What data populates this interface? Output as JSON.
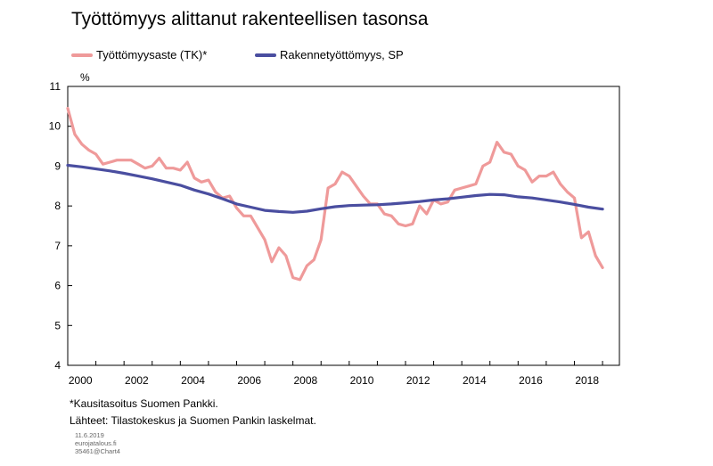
{
  "title": "Työttömyys alittanut rakenteellisen tasonsa",
  "y_unit": "%",
  "notes": [
    "*Kausitasoitus Suomen Pankki.",
    "Lähteet: Tilastokeskus ja Suomen Pankin laskelmat."
  ],
  "meta": [
    "11.6.2019",
    "eurojatalous.fi",
    "35461@Chart4"
  ],
  "chart_data": {
    "type": "line",
    "title": "Työttömyys alittanut rakenteellisen tasonsa",
    "ylabel": "%",
    "ylim": [
      4,
      11
    ],
    "xlim": [
      2000,
      2019.6
    ],
    "yticks": [
      "4",
      "5",
      "6",
      "7",
      "8",
      "9",
      "10",
      "11"
    ],
    "xticks": [
      "2000",
      "2002",
      "2004",
      "2006",
      "2008",
      "2010",
      "2012",
      "2014",
      "2016",
      "2018"
    ],
    "grid": false,
    "legend": "top-left",
    "series": [
      {
        "name": "Työttömyysaste (TK)*",
        "color": "#ef9a9a",
        "x": [
          2000.0,
          2000.25,
          2000.5,
          2000.75,
          2001.0,
          2001.25,
          2001.5,
          2001.75,
          2002.0,
          2002.25,
          2002.5,
          2002.75,
          2003.0,
          2003.25,
          2003.5,
          2003.75,
          2004.0,
          2004.25,
          2004.5,
          2004.75,
          2005.0,
          2005.25,
          2005.5,
          2005.75,
          2006.0,
          2006.25,
          2006.5,
          2006.75,
          2007.0,
          2007.25,
          2007.5,
          2007.75,
          2008.0,
          2008.25,
          2008.5,
          2008.75,
          2009.0,
          2009.25,
          2009.5,
          2009.75,
          2010.0,
          2010.25,
          2010.5,
          2010.75,
          2011.0,
          2011.25,
          2011.5,
          2011.75,
          2012.0,
          2012.25,
          2012.5,
          2012.75,
          2013.0,
          2013.25,
          2013.5,
          2013.75,
          2014.0,
          2014.25,
          2014.5,
          2014.75,
          2015.0,
          2015.25,
          2015.5,
          2015.75,
          2016.0,
          2016.25,
          2016.5,
          2016.75,
          2017.0,
          2017.25,
          2017.5,
          2017.75,
          2018.0,
          2018.25,
          2018.5,
          2018.75,
          2019.0
        ],
        "values": [
          10.45,
          9.8,
          9.55,
          9.4,
          9.3,
          9.05,
          9.1,
          9.15,
          9.15,
          9.15,
          9.05,
          8.95,
          9.0,
          9.2,
          8.95,
          8.95,
          8.9,
          9.1,
          8.7,
          8.6,
          8.65,
          8.35,
          8.2,
          8.25,
          7.95,
          7.75,
          7.75,
          7.45,
          7.15,
          6.6,
          6.95,
          6.75,
          6.2,
          6.15,
          6.5,
          6.65,
          7.15,
          8.45,
          8.55,
          8.85,
          8.75,
          8.5,
          8.25,
          8.05,
          8.05,
          7.8,
          7.75,
          7.55,
          7.5,
          7.55,
          8.0,
          7.8,
          8.15,
          8.05,
          8.1,
          8.4,
          8.45,
          8.5,
          8.55,
          9.0,
          9.1,
          9.6,
          9.35,
          9.3,
          9.0,
          8.9,
          8.6,
          8.75,
          8.75,
          8.85,
          8.55,
          8.35,
          8.2,
          7.2,
          7.35,
          6.75,
          6.45
        ]
      },
      {
        "name": "Rakennetyöttömyys, SP",
        "color": "#4a4ea0",
        "x": [
          2000.0,
          2000.5,
          2001.0,
          2001.5,
          2002.0,
          2002.5,
          2003.0,
          2003.5,
          2004.0,
          2004.5,
          2005.0,
          2005.5,
          2006.0,
          2006.5,
          2007.0,
          2007.5,
          2008.0,
          2008.5,
          2009.0,
          2009.5,
          2010.0,
          2010.5,
          2011.0,
          2011.5,
          2012.0,
          2012.5,
          2013.0,
          2013.5,
          2014.0,
          2014.5,
          2015.0,
          2015.5,
          2016.0,
          2016.5,
          2017.0,
          2017.5,
          2018.0,
          2018.5,
          2019.0
        ],
        "values": [
          9.02,
          8.98,
          8.93,
          8.88,
          8.82,
          8.75,
          8.68,
          8.6,
          8.52,
          8.4,
          8.3,
          8.18,
          8.05,
          7.97,
          7.89,
          7.86,
          7.84,
          7.87,
          7.93,
          7.98,
          8.01,
          8.02,
          8.03,
          8.05,
          8.08,
          8.11,
          8.15,
          8.18,
          8.22,
          8.26,
          8.29,
          8.28,
          8.23,
          8.2,
          8.15,
          8.1,
          8.04,
          7.97,
          7.92
        ]
      }
    ]
  }
}
